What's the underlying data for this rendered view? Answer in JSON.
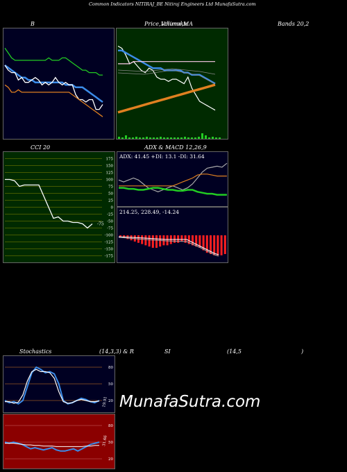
{
  "header": {
    "title": "Common  Indicators NITIRAJ_BE Nitiraj Engineers Ltd MunafaSutra.com"
  },
  "labels": {
    "bb_left": "B",
    "bb_mid1": "Price,",
    "bb_mid2": "Volume,",
    "bb_mid3": "Ichimoku",
    "bb_mid4": "MA",
    "bb_right": "Bands 20,2",
    "cci": "CCI 20",
    "adx": "ADX  & MACD 12,26,9",
    "stoch_left": "Stochastics",
    "stoch_mid": "(14,3,3) & R",
    "rsi_mid": "SI",
    "rsi_params": "(14,5",
    "rsi_close": ")"
  },
  "watermark": "MunafaSutra.com",
  "colors": {
    "panel_dark": "#000022",
    "panel_green": "#002a00",
    "panel_red": "#8b0000",
    "blue": "#3b8be8",
    "white": "#ffffff",
    "green": "#22cc22",
    "orange": "#e08020",
    "olive": "#8a8a00"
  },
  "chart_data": [
    {
      "type": "line",
      "name": "bollinger",
      "series": [
        {
          "color": "#22cc22",
          "values": [
            62,
            60,
            58,
            57,
            57,
            57,
            57,
            57,
            57,
            57,
            57,
            57,
            57,
            58,
            57,
            57,
            57,
            58,
            58,
            57,
            56,
            55,
            54,
            53,
            53,
            52,
            52,
            52,
            51,
            51
          ]
        },
        {
          "color": "#3b8be8",
          "values": [
            55,
            54,
            53,
            52,
            51,
            50,
            50,
            49,
            49,
            48,
            48,
            48,
            48,
            48,
            48,
            48,
            48,
            48,
            47,
            47,
            47,
            46,
            46,
            46,
            45,
            44,
            43,
            42,
            41,
            40
          ]
        },
        {
          "color": "#ffffff",
          "values": [
            55,
            53,
            52,
            52,
            49,
            50,
            48,
            48,
            49,
            50,
            49,
            47,
            48,
            47,
            48,
            50,
            48,
            47,
            48,
            47,
            47,
            43,
            41,
            41,
            40,
            41,
            41,
            37,
            37,
            39
          ]
        },
        {
          "color": "#e08020",
          "values": [
            47,
            46,
            44,
            44,
            45,
            44,
            44,
            44,
            44,
            44,
            44,
            44,
            44,
            44,
            44,
            44,
            44,
            44,
            44,
            44,
            43,
            42,
            41,
            40,
            39,
            38,
            37,
            36,
            35,
            34
          ]
        }
      ]
    },
    {
      "type": "line",
      "name": "price-ichimoku-ma",
      "series": [
        {
          "color": "#ffffff",
          "values": [
            42,
            41,
            38,
            34,
            35,
            33,
            31,
            30,
            32,
            31,
            28,
            27,
            27,
            26,
            27,
            27,
            26,
            25,
            28,
            23,
            20,
            17,
            16,
            15,
            14,
            13
          ]
        },
        {
          "color": "#3b8be8",
          "values": [
            40,
            40,
            39,
            38,
            37,
            36,
            35,
            34,
            33,
            32,
            32,
            32,
            31,
            31,
            31,
            31,
            31,
            30,
            30,
            29,
            29,
            29,
            28,
            27,
            26,
            25
          ]
        },
        {
          "color": "#ffccee",
          "values": [
            34,
            34,
            34,
            34,
            35,
            35,
            35,
            35,
            35,
            35,
            35,
            35,
            35,
            35,
            35,
            35,
            35,
            35,
            35,
            35,
            35,
            35,
            35,
            35,
            35,
            35
          ]
        },
        {
          "color": "#e08020",
          "values": [
            12,
            12.5,
            13,
            13.5,
            14,
            14.5,
            15,
            15.5,
            16,
            16.5,
            17,
            17.5,
            18,
            18.5,
            19,
            19.5,
            20,
            20.5,
            21,
            21.5,
            22,
            22.5,
            23,
            23.5,
            24,
            24.5
          ]
        }
      ]
    },
    {
      "type": "line",
      "name": "cci",
      "yticks": [
        175,
        150,
        125,
        100,
        75,
        50,
        25,
        0,
        -25,
        -50,
        -75,
        -100,
        -125,
        -150,
        -175
      ],
      "value_label": "-75",
      "series": [
        {
          "color": "#ffffff",
          "values": [
            100,
            100,
            95,
            75,
            80,
            80,
            80,
            80,
            40,
            0,
            -40,
            -35,
            -50,
            -50,
            -55,
            -55,
            -60,
            -75,
            -60
          ]
        }
      ]
    },
    {
      "type": "line",
      "name": "adx",
      "title_values": "ADX: 41.45  +DI: 13.1  -DI: 31.64",
      "series": [
        {
          "name": "ADX",
          "color": "#aaaaaa",
          "values": [
            28,
            26,
            28,
            30,
            28,
            24,
            20,
            18,
            16,
            18,
            20,
            22,
            20,
            18,
            20,
            24,
            30,
            36,
            40,
            41,
            42,
            41,
            45
          ]
        },
        {
          "name": "+DI",
          "color": "#22cc22",
          "values": [
            20,
            20,
            19,
            19,
            18,
            18,
            19,
            20,
            20,
            19,
            18,
            18,
            17,
            17,
            18,
            18,
            16,
            15,
            14,
            14,
            13,
            13,
            13
          ]
        },
        {
          "name": "-DI",
          "color": "#e08020",
          "values": [
            22,
            22,
            22,
            22,
            22,
            22,
            22,
            22,
            22,
            22,
            22,
            22,
            24,
            26,
            28,
            30,
            33,
            34,
            34,
            33,
            32,
            32,
            32
          ]
        }
      ]
    },
    {
      "type": "bar",
      "name": "macd",
      "title_values": "214.25,  228.49,  -14.24",
      "values": [
        -1,
        -2,
        -3,
        -4,
        -5,
        -6,
        -7,
        -8,
        -9,
        -10,
        -10,
        -9,
        -8,
        -8,
        -7,
        -6,
        -6,
        -5,
        -6,
        -7,
        -8,
        -9,
        -10,
        -12,
        -14,
        -15,
        -16,
        -16,
        -16,
        -15
      ]
    },
    {
      "type": "line",
      "name": "stochastics",
      "yticks": [
        80,
        50,
        20
      ],
      "value_label": "19.91",
      "series": [
        {
          "color": "#3b8be8",
          "values": [
            20,
            16,
            18,
            14,
            20,
            45,
            70,
            80,
            76,
            70,
            72,
            68,
            50,
            20,
            14,
            16,
            20,
            24,
            22,
            18,
            16,
            20
          ]
        },
        {
          "color": "#ffffff",
          "values": [
            18,
            18,
            15,
            17,
            30,
            55,
            72,
            76,
            72,
            72,
            70,
            60,
            36,
            18,
            15,
            16,
            20,
            22,
            20,
            18,
            18,
            19
          ]
        }
      ]
    },
    {
      "type": "line",
      "name": "rsi",
      "yticks": [
        80,
        50,
        20
      ],
      "value_label": "31.66",
      "series": [
        {
          "color": "#3b8be8",
          "values": [
            50,
            48,
            50,
            48,
            46,
            42,
            38,
            40,
            38,
            36,
            38,
            40,
            36,
            34,
            34,
            36,
            38,
            34,
            38,
            42,
            46,
            48,
            50
          ]
        },
        {
          "color": "#ffffff",
          "values": [
            48,
            48,
            48,
            47,
            46,
            45,
            45,
            44,
            44,
            43,
            43,
            43,
            42,
            42,
            42,
            42,
            42,
            42,
            42,
            43,
            43,
            44,
            44
          ]
        }
      ]
    }
  ]
}
